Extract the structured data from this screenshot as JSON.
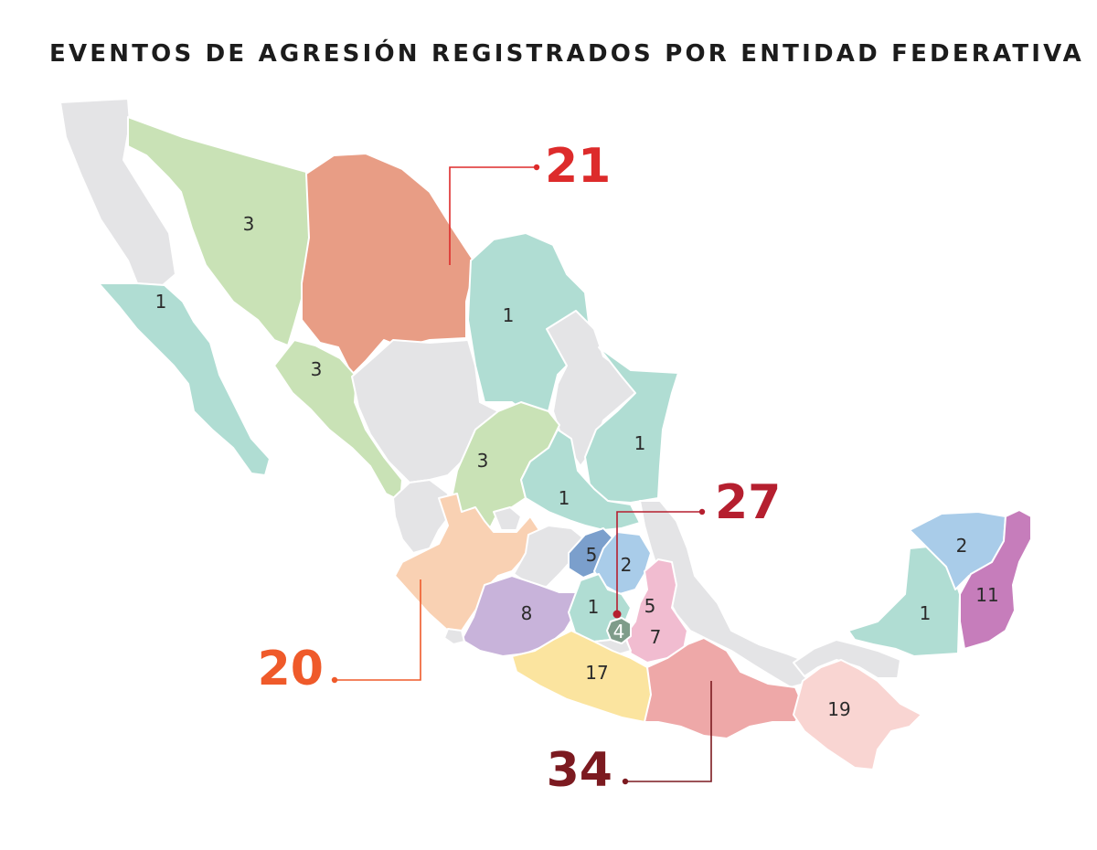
{
  "title": "EVENTOS DE AGRESIÓN REGISTRADOS POR ENTIDAD FEDERATIVA",
  "map": {
    "colors": {
      "no_data": "#e4e4e6",
      "teal": "#b0ddd3",
      "light_green": "#c9e2b6",
      "salmon": "#e89d85",
      "peach": "#f9d1b3",
      "purple": "#c8b3da",
      "yellow": "#fbe49f",
      "rose": "#eea8a8",
      "pale_pink": "#f9d5d2",
      "pink": "#f1bcd0",
      "magenta": "#c67dbb",
      "light_blue": "#a9cce9",
      "dark_blue": "#7b9fcc",
      "cdmx_green": "#7f9c8a"
    },
    "labels": [
      {
        "id": "bcs",
        "value": "1"
      },
      {
        "id": "sonora",
        "value": "3"
      },
      {
        "id": "sinaloa",
        "value": "3"
      },
      {
        "id": "nuevo_leon",
        "value": "1"
      },
      {
        "id": "tamaulipas",
        "value": "1"
      },
      {
        "id": "zacatecas",
        "value": "3"
      },
      {
        "id": "san_luis_potosi",
        "value": "1"
      },
      {
        "id": "queretaro",
        "value": "5"
      },
      {
        "id": "hidalgo",
        "value": "2"
      },
      {
        "id": "tlaxcala",
        "value": "5"
      },
      {
        "id": "michoacan",
        "value": "8"
      },
      {
        "id": "estado_mexico",
        "value": "1"
      },
      {
        "id": "cdmx",
        "value": "4"
      },
      {
        "id": "puebla",
        "value": "7"
      },
      {
        "id": "guerrero",
        "value": "17"
      },
      {
        "id": "chiapas",
        "value": "19"
      },
      {
        "id": "campeche",
        "value": "1"
      },
      {
        "id": "yucatan",
        "value": "2"
      },
      {
        "id": "quintana_roo",
        "value": "11"
      }
    ],
    "callouts": [
      {
        "id": "chihuahua",
        "value": "21",
        "color": "#dd2b2b"
      },
      {
        "id": "veracruz",
        "value": "27",
        "color": "#b51f2f"
      },
      {
        "id": "jalisco",
        "value": "20",
        "color": "#ef5a2a"
      },
      {
        "id": "oaxaca",
        "value": "34",
        "color": "#7c1a20"
      }
    ]
  }
}
